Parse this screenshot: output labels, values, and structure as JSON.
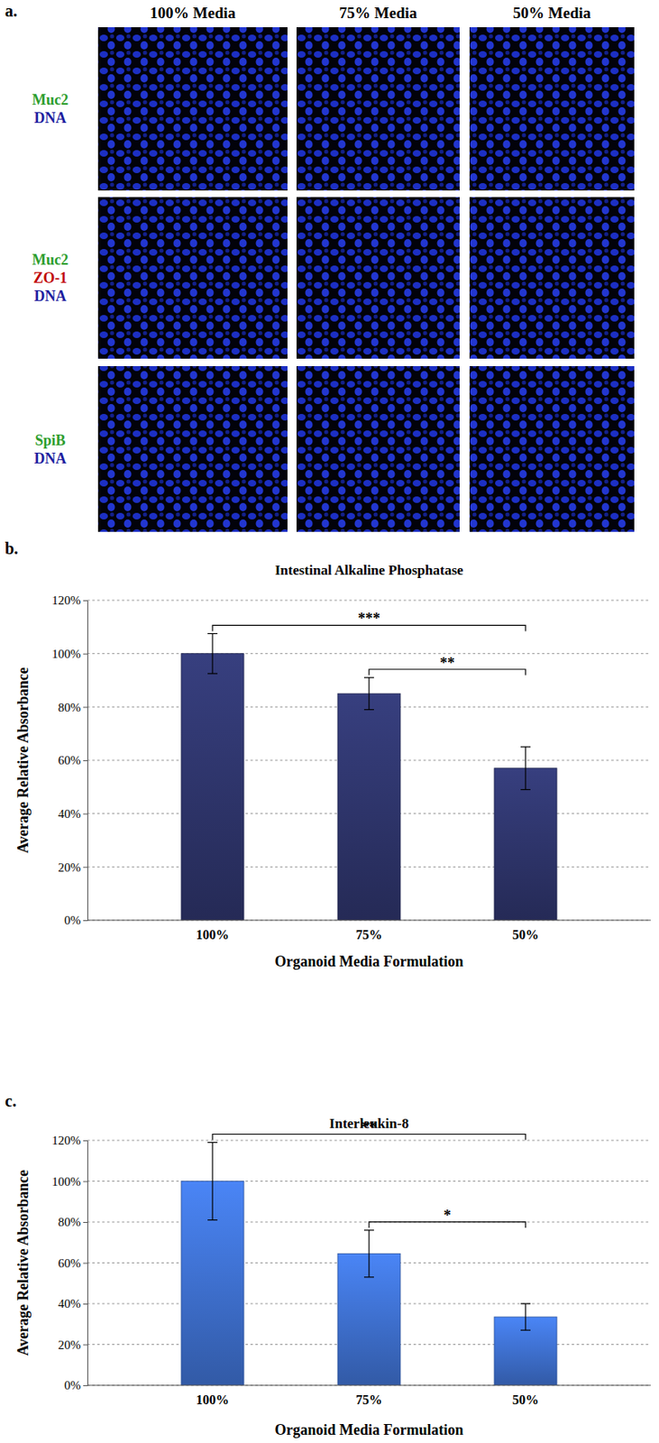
{
  "image_panel": {
    "label": "a.",
    "columns": [
      "100% Media",
      "75% Media",
      "50% Media"
    ],
    "rows": [
      [
        {
          "text": "Muc2",
          "color": "#2e9e2e"
        },
        {
          "text": "DNA",
          "color": "#1f1fa0"
        }
      ],
      [
        {
          "text": "Muc2",
          "color": "#2e9e2e"
        },
        {
          "text": "ZO-1",
          "color": "#c00000"
        },
        {
          "text": "DNA",
          "color": "#1f1fa0"
        }
      ],
      [
        {
          "text": "SpiB",
          "color": "#2e9e2e"
        },
        {
          "text": "DNA",
          "color": "#1f1fa0"
        }
      ]
    ]
  },
  "chart_data": [
    {
      "type": "bar",
      "label": "b.",
      "title": "Intestinal Alkaline Phosphatase",
      "x_label": "Organoid Media Formulation",
      "y_label": "Average Relative Absorbance",
      "categories": [
        "100%",
        "75%",
        "50%"
      ],
      "values": [
        100,
        85,
        57
      ],
      "errors": [
        7.5,
        6,
        8
      ],
      "color": "#2b3163",
      "ylim": [
        0,
        120
      ],
      "yticks": [
        {
          "value": 0,
          "label": "0%"
        },
        {
          "value": 20,
          "label": "20%"
        },
        {
          "value": 40,
          "label": "40%"
        },
        {
          "value": 60,
          "label": "60%"
        },
        {
          "value": 80,
          "label": "80%"
        },
        {
          "value": 100,
          "label": "100%"
        },
        {
          "value": 120,
          "label": "120%"
        }
      ],
      "grid": true,
      "annotations": [
        {
          "text": "***",
          "between": [
            "100%",
            "50%"
          ]
        },
        {
          "text": "**",
          "between": [
            "75%",
            "50%"
          ]
        }
      ]
    },
    {
      "type": "bar",
      "label": "c.",
      "title": "Interleukin-8",
      "x_label": "Organoid Media Formulation",
      "y_label": "Average Relative Absorbance",
      "categories": [
        "100%",
        "75%",
        "50%"
      ],
      "values": [
        100,
        64.5,
        33.5
      ],
      "errors": [
        19,
        11.5,
        6.5
      ],
      "color": "#3a68c0",
      "ylim": [
        0,
        120
      ],
      "yticks": [
        {
          "value": 0,
          "label": "0%"
        },
        {
          "value": 20,
          "label": "20%"
        },
        {
          "value": 40,
          "label": "40%"
        },
        {
          "value": 60,
          "label": "60%"
        },
        {
          "value": 80,
          "label": "80%"
        },
        {
          "value": 100,
          "label": "100%"
        },
        {
          "value": 120,
          "label": "120%"
        }
      ],
      "grid": true,
      "annotations": [
        {
          "text": "**",
          "between": [
            "100%",
            "50%"
          ]
        },
        {
          "text": "*",
          "between": [
            "75%",
            "50%"
          ]
        }
      ]
    }
  ]
}
